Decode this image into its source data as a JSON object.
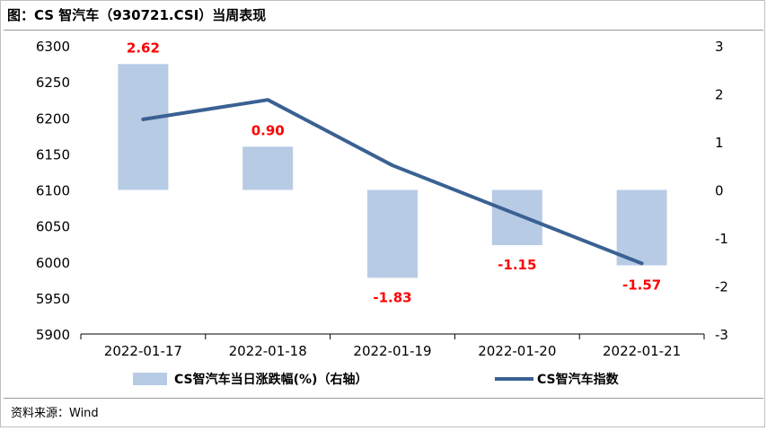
{
  "header": {
    "title": "图：CS 智汽车（930721.CSI）当周表现"
  },
  "footer": {
    "source": "资料来源：Wind"
  },
  "colors": {
    "bar": "#b7cbe5",
    "line": "#3a6192",
    "data_label": "#ff0000"
  },
  "chart_data": {
    "type": "bar+line",
    "categories": [
      "2022-01-17",
      "2022-01-18",
      "2022-01-19",
      "2022-01-20",
      "2022-01-21"
    ],
    "series": [
      {
        "name": "CS智汽车当日涨跌幅(%)（右轴）",
        "type": "bar",
        "axis": "right",
        "values": [
          2.62,
          0.9,
          -1.83,
          -1.15,
          -1.57
        ],
        "labels": [
          "2.62",
          "0.90",
          "-1.83",
          "-1.15",
          "-1.57"
        ]
      },
      {
        "name": "CS智汽车指数",
        "type": "line",
        "axis": "left",
        "values": [
          6198,
          6225,
          6134,
          6066,
          5998
        ]
      }
    ],
    "left_axis": {
      "ylim": [
        5900,
        6300
      ],
      "ticks": [
        "6300",
        "6250",
        "6200",
        "6150",
        "6100",
        "6050",
        "6000",
        "5950",
        "5900"
      ]
    },
    "right_axis": {
      "ylim": [
        -3,
        3
      ],
      "ticks": [
        "3",
        "2",
        "1",
        "0",
        "-1",
        "-2",
        "-3"
      ]
    },
    "grid": false,
    "legend_position": "bottom"
  }
}
